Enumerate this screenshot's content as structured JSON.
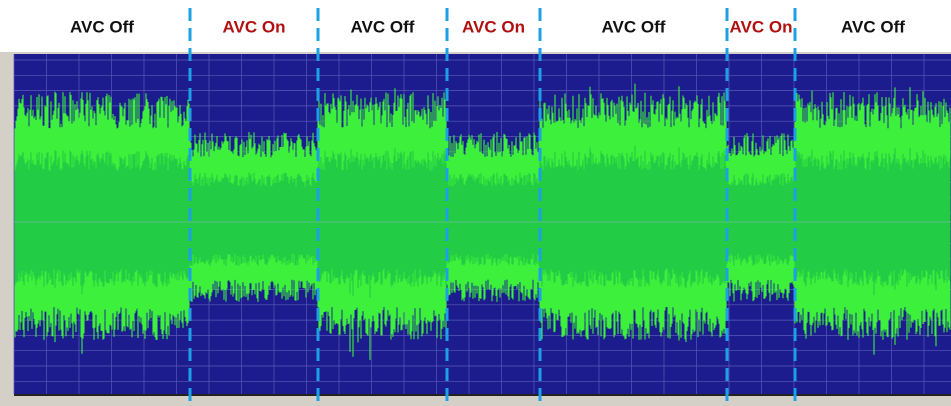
{
  "segments": [
    {
      "label": "AVC Off",
      "color": "#111111"
    },
    {
      "label": "AVC On",
      "color": "#b01010"
    },
    {
      "label": "AVC Off",
      "color": "#111111"
    },
    {
      "label": "AVC On",
      "color": "#b01010"
    },
    {
      "label": "AVC Off",
      "color": "#111111"
    },
    {
      "label": "AVC On",
      "color": "#b01010"
    },
    {
      "label": "AVC Off",
      "color": "#111111"
    }
  ]
}
